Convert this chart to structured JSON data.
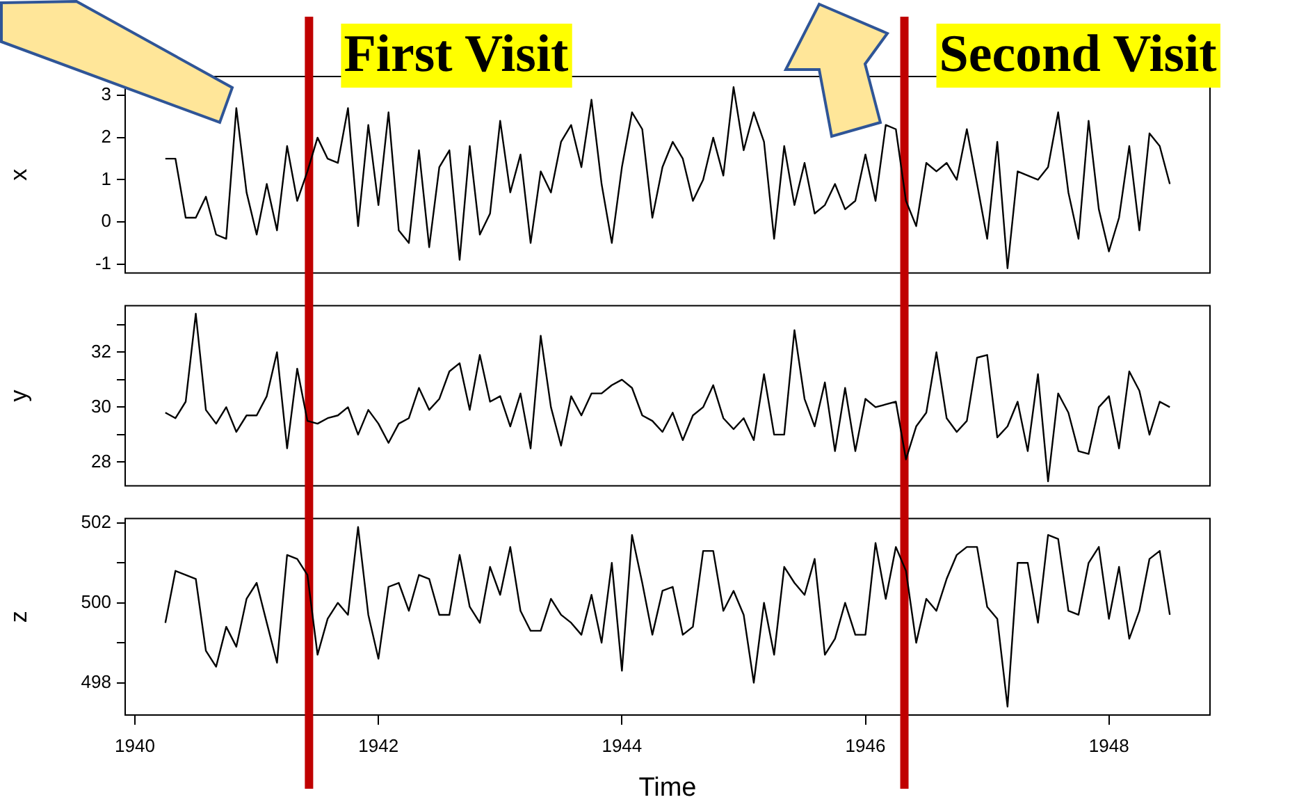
{
  "chart_data": [
    {
      "type": "line",
      "ylabel": "x",
      "color": "#000000",
      "marker": "none",
      "line_style": "solid",
      "grid": false,
      "legend": false,
      "tick_labels": "y",
      "xlim": [
        1939.92,
        1948.83
      ],
      "ylim": [
        -1.21,
        3.45
      ],
      "yticks": [
        -1,
        0,
        1,
        2,
        3
      ],
      "ref_lines": [
        {
          "axis": "x",
          "value": 1941.43,
          "label": "First Visit",
          "color": "#c00000"
        },
        {
          "axis": "x",
          "value": 1946.32,
          "label": "Second Visit",
          "color": "#c00000"
        }
      ],
      "x": [
        1940.25,
        1940.333,
        1940.417,
        1940.5,
        1940.583,
        1940.667,
        1940.75,
        1940.833,
        1940.917,
        1941,
        1941.083,
        1941.167,
        1941.25,
        1941.333,
        1941.417,
        1941.5,
        1941.583,
        1941.667,
        1941.75,
        1941.833,
        1941.917,
        1942,
        1942.083,
        1942.167,
        1942.25,
        1942.333,
        1942.417,
        1942.5,
        1942.583,
        1942.667,
        1942.75,
        1942.833,
        1942.917,
        1943,
        1943.083,
        1943.167,
        1943.25,
        1943.333,
        1943.417,
        1943.5,
        1943.583,
        1943.667,
        1943.75,
        1943.833,
        1943.917,
        1944,
        1944.083,
        1944.167,
        1944.25,
        1944.333,
        1944.417,
        1944.5,
        1944.583,
        1944.667,
        1944.75,
        1944.833,
        1944.917,
        1945,
        1945.083,
        1945.167,
        1945.25,
        1945.333,
        1945.417,
        1945.5,
        1945.583,
        1945.667,
        1945.75,
        1945.833,
        1945.917,
        1946,
        1946.083,
        1946.167,
        1946.25,
        1946.333,
        1946.417,
        1946.5,
        1946.583,
        1946.667,
        1946.75,
        1946.833,
        1946.917,
        1947,
        1947.083,
        1947.167,
        1947.25,
        1947.333,
        1947.417,
        1947.5,
        1947.583,
        1947.667,
        1947.75,
        1947.833,
        1947.917,
        1948,
        1948.083,
        1948.167,
        1948.25,
        1948.333,
        1948.417,
        1948.5
      ],
      "values": [
        1.5,
        1.5,
        0.1,
        0.1,
        0.6,
        -0.3,
        -0.4,
        2.7,
        0.7,
        -0.3,
        0.9,
        -0.2,
        1.8,
        0.5,
        1.2,
        2.0,
        1.5,
        1.4,
        2.7,
        -0.1,
        2.3,
        0.4,
        2.6,
        -0.2,
        -0.5,
        1.7,
        -0.6,
        1.3,
        1.7,
        -0.9,
        1.8,
        -0.3,
        0.2,
        2.4,
        0.7,
        1.6,
        -0.5,
        1.2,
        0.7,
        1.9,
        2.3,
        1.3,
        2.9,
        0.9,
        -0.5,
        1.3,
        2.6,
        2.2,
        0.1,
        1.3,
        1.9,
        1.5,
        0.5,
        1.0,
        2.0,
        1.1,
        3.2,
        1.7,
        2.6,
        1.9,
        -0.4,
        1.8,
        0.4,
        1.4,
        0.2,
        0.4,
        0.9,
        0.3,
        0.5,
        1.6,
        0.5,
        2.3,
        2.2,
        0.5,
        -0.1,
        1.4,
        1.2,
        1.4,
        1.0,
        2.2,
        0.9,
        -0.4,
        1.9,
        -1.1,
        1.2,
        1.1,
        1.0,
        1.3,
        2.6,
        0.7,
        -0.4,
        2.4,
        0.3,
        -0.7,
        0.1,
        1.8,
        -0.2,
        2.1,
        1.8,
        0.9
      ]
    },
    {
      "type": "line",
      "ylabel": "y",
      "color": "#000000",
      "marker": "none",
      "line_style": "solid",
      "grid": false,
      "legend": false,
      "tick_labels": "y",
      "xlim": [
        1939.92,
        1948.83
      ],
      "ylim": [
        27.14,
        33.69
      ],
      "yticks": [
        28,
        {
          "value": 29,
          "label": null
        },
        30,
        {
          "value": 31,
          "label": null
        },
        32,
        {
          "value": 33,
          "label": null
        }
      ],
      "ref_lines": [
        {
          "axis": "x",
          "value": 1941.43,
          "color": "#c00000"
        },
        {
          "axis": "x",
          "value": 1946.32,
          "color": "#c00000"
        }
      ],
      "x": [
        1940.25,
        1940.333,
        1940.417,
        1940.5,
        1940.583,
        1940.667,
        1940.75,
        1940.833,
        1940.917,
        1941,
        1941.083,
        1941.167,
        1941.25,
        1941.333,
        1941.417,
        1941.5,
        1941.583,
        1941.667,
        1941.75,
        1941.833,
        1941.917,
        1942,
        1942.083,
        1942.167,
        1942.25,
        1942.333,
        1942.417,
        1942.5,
        1942.583,
        1942.667,
        1942.75,
        1942.833,
        1942.917,
        1943,
        1943.083,
        1943.167,
        1943.25,
        1943.333,
        1943.417,
        1943.5,
        1943.583,
        1943.667,
        1943.75,
        1943.833,
        1943.917,
        1944,
        1944.083,
        1944.167,
        1944.25,
        1944.333,
        1944.417,
        1944.5,
        1944.583,
        1944.667,
        1944.75,
        1944.833,
        1944.917,
        1945,
        1945.083,
        1945.167,
        1945.25,
        1945.333,
        1945.417,
        1945.5,
        1945.583,
        1945.667,
        1945.75,
        1945.833,
        1945.917,
        1946,
        1946.083,
        1946.167,
        1946.25,
        1946.333,
        1946.417,
        1946.5,
        1946.583,
        1946.667,
        1946.75,
        1946.833,
        1946.917,
        1947,
        1947.083,
        1947.167,
        1947.25,
        1947.333,
        1947.417,
        1947.5,
        1947.583,
        1947.667,
        1947.75,
        1947.833,
        1947.917,
        1948,
        1948.083,
        1948.167,
        1948.25,
        1948.333,
        1948.417,
        1948.5
      ],
      "values": [
        29.8,
        29.6,
        30.2,
        33.4,
        29.9,
        29.4,
        30.0,
        29.1,
        29.7,
        29.7,
        30.4,
        32.0,
        28.5,
        31.4,
        29.5,
        29.4,
        29.6,
        29.7,
        30.0,
        29.0,
        29.9,
        29.4,
        28.7,
        29.4,
        29.6,
        30.7,
        29.9,
        30.3,
        31.3,
        31.6,
        29.9,
        31.9,
        30.2,
        30.4,
        29.3,
        30.5,
        28.5,
        32.6,
        30.0,
        28.6,
        30.4,
        29.7,
        30.5,
        30.5,
        30.8,
        31.0,
        30.7,
        29.7,
        29.5,
        29.1,
        29.8,
        28.8,
        29.7,
        30.0,
        30.8,
        29.6,
        29.2,
        29.6,
        28.8,
        31.2,
        29.0,
        29.0,
        32.8,
        30.3,
        29.3,
        30.9,
        28.4,
        30.7,
        28.4,
        30.3,
        30.0,
        30.1,
        30.2,
        28.1,
        29.3,
        29.8,
        32.0,
        29.6,
        29.1,
        29.5,
        31.8,
        31.9,
        28.9,
        29.3,
        30.2,
        28.4,
        31.2,
        27.3,
        30.5,
        29.8,
        28.4,
        28.3,
        30.0,
        30.4,
        28.5,
        31.3,
        30.6,
        29.0,
        30.2,
        30.0
      ]
    },
    {
      "type": "line",
      "ylabel": "z",
      "xlabel": "Time",
      "color": "#000000",
      "marker": "none",
      "line_style": "solid",
      "grid": false,
      "legend": false,
      "xlim": [
        1939.92,
        1948.83
      ],
      "xticks": [
        1940,
        1942,
        1944,
        1946,
        1948
      ],
      "ylim": [
        497.19,
        502.11
      ],
      "yticks": [
        498,
        {
          "value": 499,
          "label": null
        },
        500,
        {
          "value": 501,
          "label": null
        },
        502
      ],
      "ref_lines": [
        {
          "axis": "x",
          "value": 1941.43,
          "color": "#c00000"
        },
        {
          "axis": "x",
          "value": 1946.32,
          "color": "#c00000"
        }
      ],
      "x": [
        1940.25,
        1940.333,
        1940.417,
        1940.5,
        1940.583,
        1940.667,
        1940.75,
        1940.833,
        1940.917,
        1941,
        1941.083,
        1941.167,
        1941.25,
        1941.333,
        1941.417,
        1941.5,
        1941.583,
        1941.667,
        1941.75,
        1941.833,
        1941.917,
        1942,
        1942.083,
        1942.167,
        1942.25,
        1942.333,
        1942.417,
        1942.5,
        1942.583,
        1942.667,
        1942.75,
        1942.833,
        1942.917,
        1943,
        1943.083,
        1943.167,
        1943.25,
        1943.333,
        1943.417,
        1943.5,
        1943.583,
        1943.667,
        1943.75,
        1943.833,
        1943.917,
        1944,
        1944.083,
        1944.167,
        1944.25,
        1944.333,
        1944.417,
        1944.5,
        1944.583,
        1944.667,
        1944.75,
        1944.833,
        1944.917,
        1945,
        1945.083,
        1945.167,
        1945.25,
        1945.333,
        1945.417,
        1945.5,
        1945.583,
        1945.667,
        1945.75,
        1945.833,
        1945.917,
        1946,
        1946.083,
        1946.167,
        1946.25,
        1946.333,
        1946.417,
        1946.5,
        1946.583,
        1946.667,
        1946.75,
        1946.833,
        1946.917,
        1947,
        1947.083,
        1947.167,
        1947.25,
        1947.333,
        1947.417,
        1947.5,
        1947.583,
        1947.667,
        1947.75,
        1947.833,
        1947.917,
        1948,
        1948.083,
        1948.167,
        1948.25,
        1948.333,
        1948.417,
        1948.5
      ],
      "values": [
        499.5,
        500.8,
        500.7,
        500.6,
        498.8,
        498.4,
        499.4,
        498.9,
        500.1,
        500.5,
        499.5,
        498.5,
        501.2,
        501.1,
        500.7,
        498.7,
        499.6,
        500.0,
        499.7,
        501.9,
        499.7,
        498.6,
        500.4,
        500.5,
        499.8,
        500.7,
        500.6,
        499.7,
        499.7,
        501.2,
        499.9,
        499.5,
        500.9,
        500.2,
        501.4,
        499.8,
        499.3,
        499.3,
        500.1,
        499.7,
        499.5,
        499.2,
        500.2,
        499.0,
        501.0,
        498.3,
        501.7,
        500.5,
        499.2,
        500.3,
        500.4,
        499.2,
        499.4,
        501.3,
        501.3,
        499.8,
        500.3,
        499.7,
        498.0,
        500.0,
        498.7,
        500.9,
        500.5,
        500.2,
        501.1,
        498.7,
        499.1,
        500.0,
        499.2,
        499.2,
        501.5,
        500.1,
        501.4,
        500.8,
        499.0,
        500.1,
        499.8,
        500.6,
        501.2,
        501.4,
        501.4,
        499.9,
        499.6,
        497.4,
        501.0,
        501.0,
        499.5,
        501.7,
        501.6,
        499.8,
        499.7,
        501.0,
        501.4,
        499.6,
        500.9,
        499.1,
        499.8,
        501.1,
        501.3,
        499.7
      ]
    }
  ]
}
